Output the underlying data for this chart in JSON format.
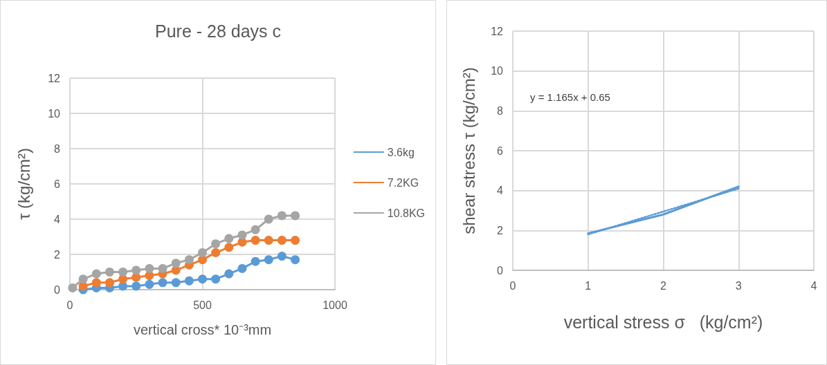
{
  "chart_data": [
    {
      "type": "line",
      "title": "Pure - 28 days c",
      "xlabel": "vertical cross* 10⁻³mm",
      "ylabel": "τ (kg/cm²)",
      "x": [
        10,
        50,
        100,
        150,
        200,
        250,
        300,
        350,
        400,
        450,
        500,
        550,
        600,
        650,
        700,
        750,
        800,
        850
      ],
      "series": [
        {
          "name": "3.6kg",
          "color": "#5b9bd5",
          "values": [
            null,
            0,
            0.1,
            0.1,
            0.2,
            0.2,
            0.3,
            0.4,
            0.4,
            0.5,
            0.6,
            0.6,
            0.9,
            1.2,
            1.6,
            1.7,
            1.9,
            1.7
          ]
        },
        {
          "name": "7.2KG",
          "color": "#ed7d31",
          "values": [
            null,
            0.2,
            0.4,
            0.4,
            0.6,
            0.7,
            0.8,
            0.9,
            1.1,
            1.4,
            1.7,
            2.1,
            2.4,
            2.7,
            2.8,
            2.8,
            2.8,
            2.8
          ]
        },
        {
          "name": "10.8KG",
          "color": "#a5a5a5",
          "values": [
            0.1,
            0.6,
            0.9,
            1.0,
            1.0,
            1.1,
            1.2,
            1.2,
            1.5,
            1.7,
            2.1,
            2.6,
            2.9,
            3.1,
            3.4,
            4.0,
            4.2,
            4.2
          ]
        }
      ],
      "xlim": [
        0,
        1000
      ],
      "xticks": [
        0,
        500,
        1000
      ],
      "ylim": [
        0,
        12
      ],
      "yticks": [
        0,
        2,
        4,
        6,
        8,
        10,
        12
      ],
      "grid": true,
      "legend": "right",
      "marker": "circle",
      "line_style": "solid"
    },
    {
      "type": "line",
      "xlabel": "vertical stress σ   (kg/cm²)",
      "ylabel": "shear stress τ (kg/cm²)",
      "x": [
        1,
        2,
        3
      ],
      "series": [
        {
          "color": "#5b9bd5",
          "values": [
            1.85,
            2.8,
            4.2
          ]
        },
        {
          "color": "#5b9bd5",
          "x": [
            1,
            3
          ],
          "values": [
            1.8,
            4.1
          ],
          "line_style": "dotted"
        }
      ],
      "annotations": [
        "y = 1.165x + 0.65"
      ],
      "xlim": [
        0,
        4
      ],
      "xticks": [
        0,
        1,
        2,
        3,
        4
      ],
      "ylim": [
        0,
        12
      ],
      "yticks": [
        0,
        2,
        4,
        6,
        8,
        10,
        12
      ],
      "grid": true,
      "marker": "none",
      "line_style": "solid"
    }
  ]
}
